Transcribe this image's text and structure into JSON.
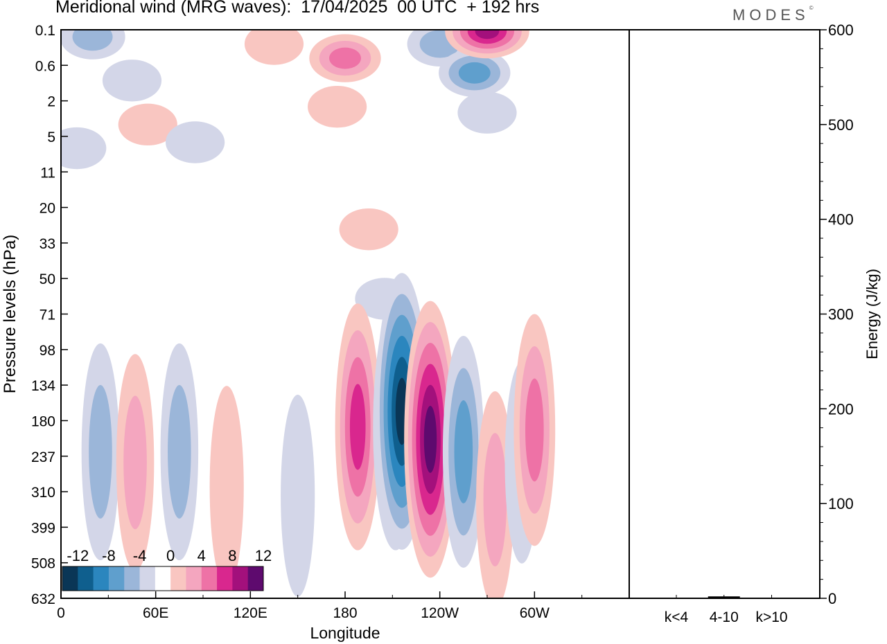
{
  "title": "Meridional wind (MRG waves):  17/04/2025  00 UTC  + 192 hrs",
  "brand": "MODES",
  "brand_mark": "©",
  "chart_data": [
    {
      "type": "heatmap",
      "variable": "Meridional wind (MRG waves)",
      "xlabel": "Longitude",
      "ylabel": "Pressure levels (hPa)",
      "x_ticks": [
        "0",
        "60E",
        "120E",
        "180",
        "120W",
        "60W"
      ],
      "y_ticks": [
        "0.1",
        "0.6",
        "2",
        "5",
        "11",
        "20",
        "33",
        "50",
        "71",
        "98",
        "134",
        "180",
        "237",
        "310",
        "399",
        "508",
        "632"
      ],
      "colorbar": {
        "labels": [
          "-12",
          "-8",
          "-4",
          "0",
          "4",
          "8",
          "12"
        ],
        "levels": [
          -14,
          -12,
          -10,
          -8,
          -6,
          -4,
          -2,
          2,
          4,
          6,
          8,
          10,
          12,
          14
        ],
        "colors": [
          "#0a3656",
          "#0f5f8e",
          "#2b86be",
          "#5f9fcd",
          "#9bb6d9",
          "#d3d6e8",
          "#ffffff",
          "#f9c6c1",
          "#f4a6bf",
          "#ee72a6",
          "#d9278e",
          "#a3107c",
          "#5e0a6e"
        ]
      },
      "features": [
        {
          "lon": 20,
          "p": 0.2,
          "value": -4
        },
        {
          "lon": 45,
          "p": 1.2,
          "value": -2
        },
        {
          "lon": 10,
          "p": 7,
          "value": -2
        },
        {
          "lon": 55,
          "p": 4,
          "value": 2
        },
        {
          "lon": 85,
          "p": 6,
          "value": -2
        },
        {
          "lon": 135,
          "p": 0.3,
          "value": 2
        },
        {
          "lon": 180,
          "p": 0.5,
          "value": 6
        },
        {
          "lon": 175,
          "p": 2.5,
          "value": 2
        },
        {
          "lon": 240,
          "p": 0.3,
          "value": -4
        },
        {
          "lon": 262,
          "p": 0.9,
          "value": -6
        },
        {
          "lon": 270,
          "p": 3,
          "value": -2
        },
        {
          "lon": 270,
          "p": 0.12,
          "value": 10
        },
        {
          "lon": 195,
          "p": 28,
          "value": 2
        },
        {
          "lon": 205,
          "p": 62,
          "value": -2
        },
        {
          "lon": 25,
          "p": 230,
          "value": -4
        },
        {
          "lon": 47,
          "p": 250,
          "value": 4
        },
        {
          "lon": 75,
          "p": 230,
          "value": -4
        },
        {
          "lon": 105,
          "p": 300,
          "value": 2
        },
        {
          "lon": 150,
          "p": 320,
          "value": -2
        },
        {
          "lon": 188,
          "p": 190,
          "value": 8
        },
        {
          "lon": 212,
          "p": 190,
          "value": -8
        },
        {
          "lon": 216,
          "p": 168,
          "value": -12
        },
        {
          "lon": 234,
          "p": 210,
          "value": 12
        },
        {
          "lon": 255,
          "p": 230,
          "value": -6
        },
        {
          "lon": 275,
          "p": 330,
          "value": 4
        },
        {
          "lon": 292,
          "p": 250,
          "value": -2
        },
        {
          "lon": 300,
          "p": 195,
          "value": 6
        }
      ]
    },
    {
      "type": "bar",
      "categories": [
        "k<4",
        "4-10",
        "k>10"
      ],
      "values": [
        0,
        2,
        0
      ],
      "ylabel": "Energy (J/kg)",
      "ylim": [
        0,
        600
      ],
      "y_ticks": [
        "0",
        "100",
        "200",
        "300",
        "400",
        "500",
        "600"
      ]
    }
  ]
}
